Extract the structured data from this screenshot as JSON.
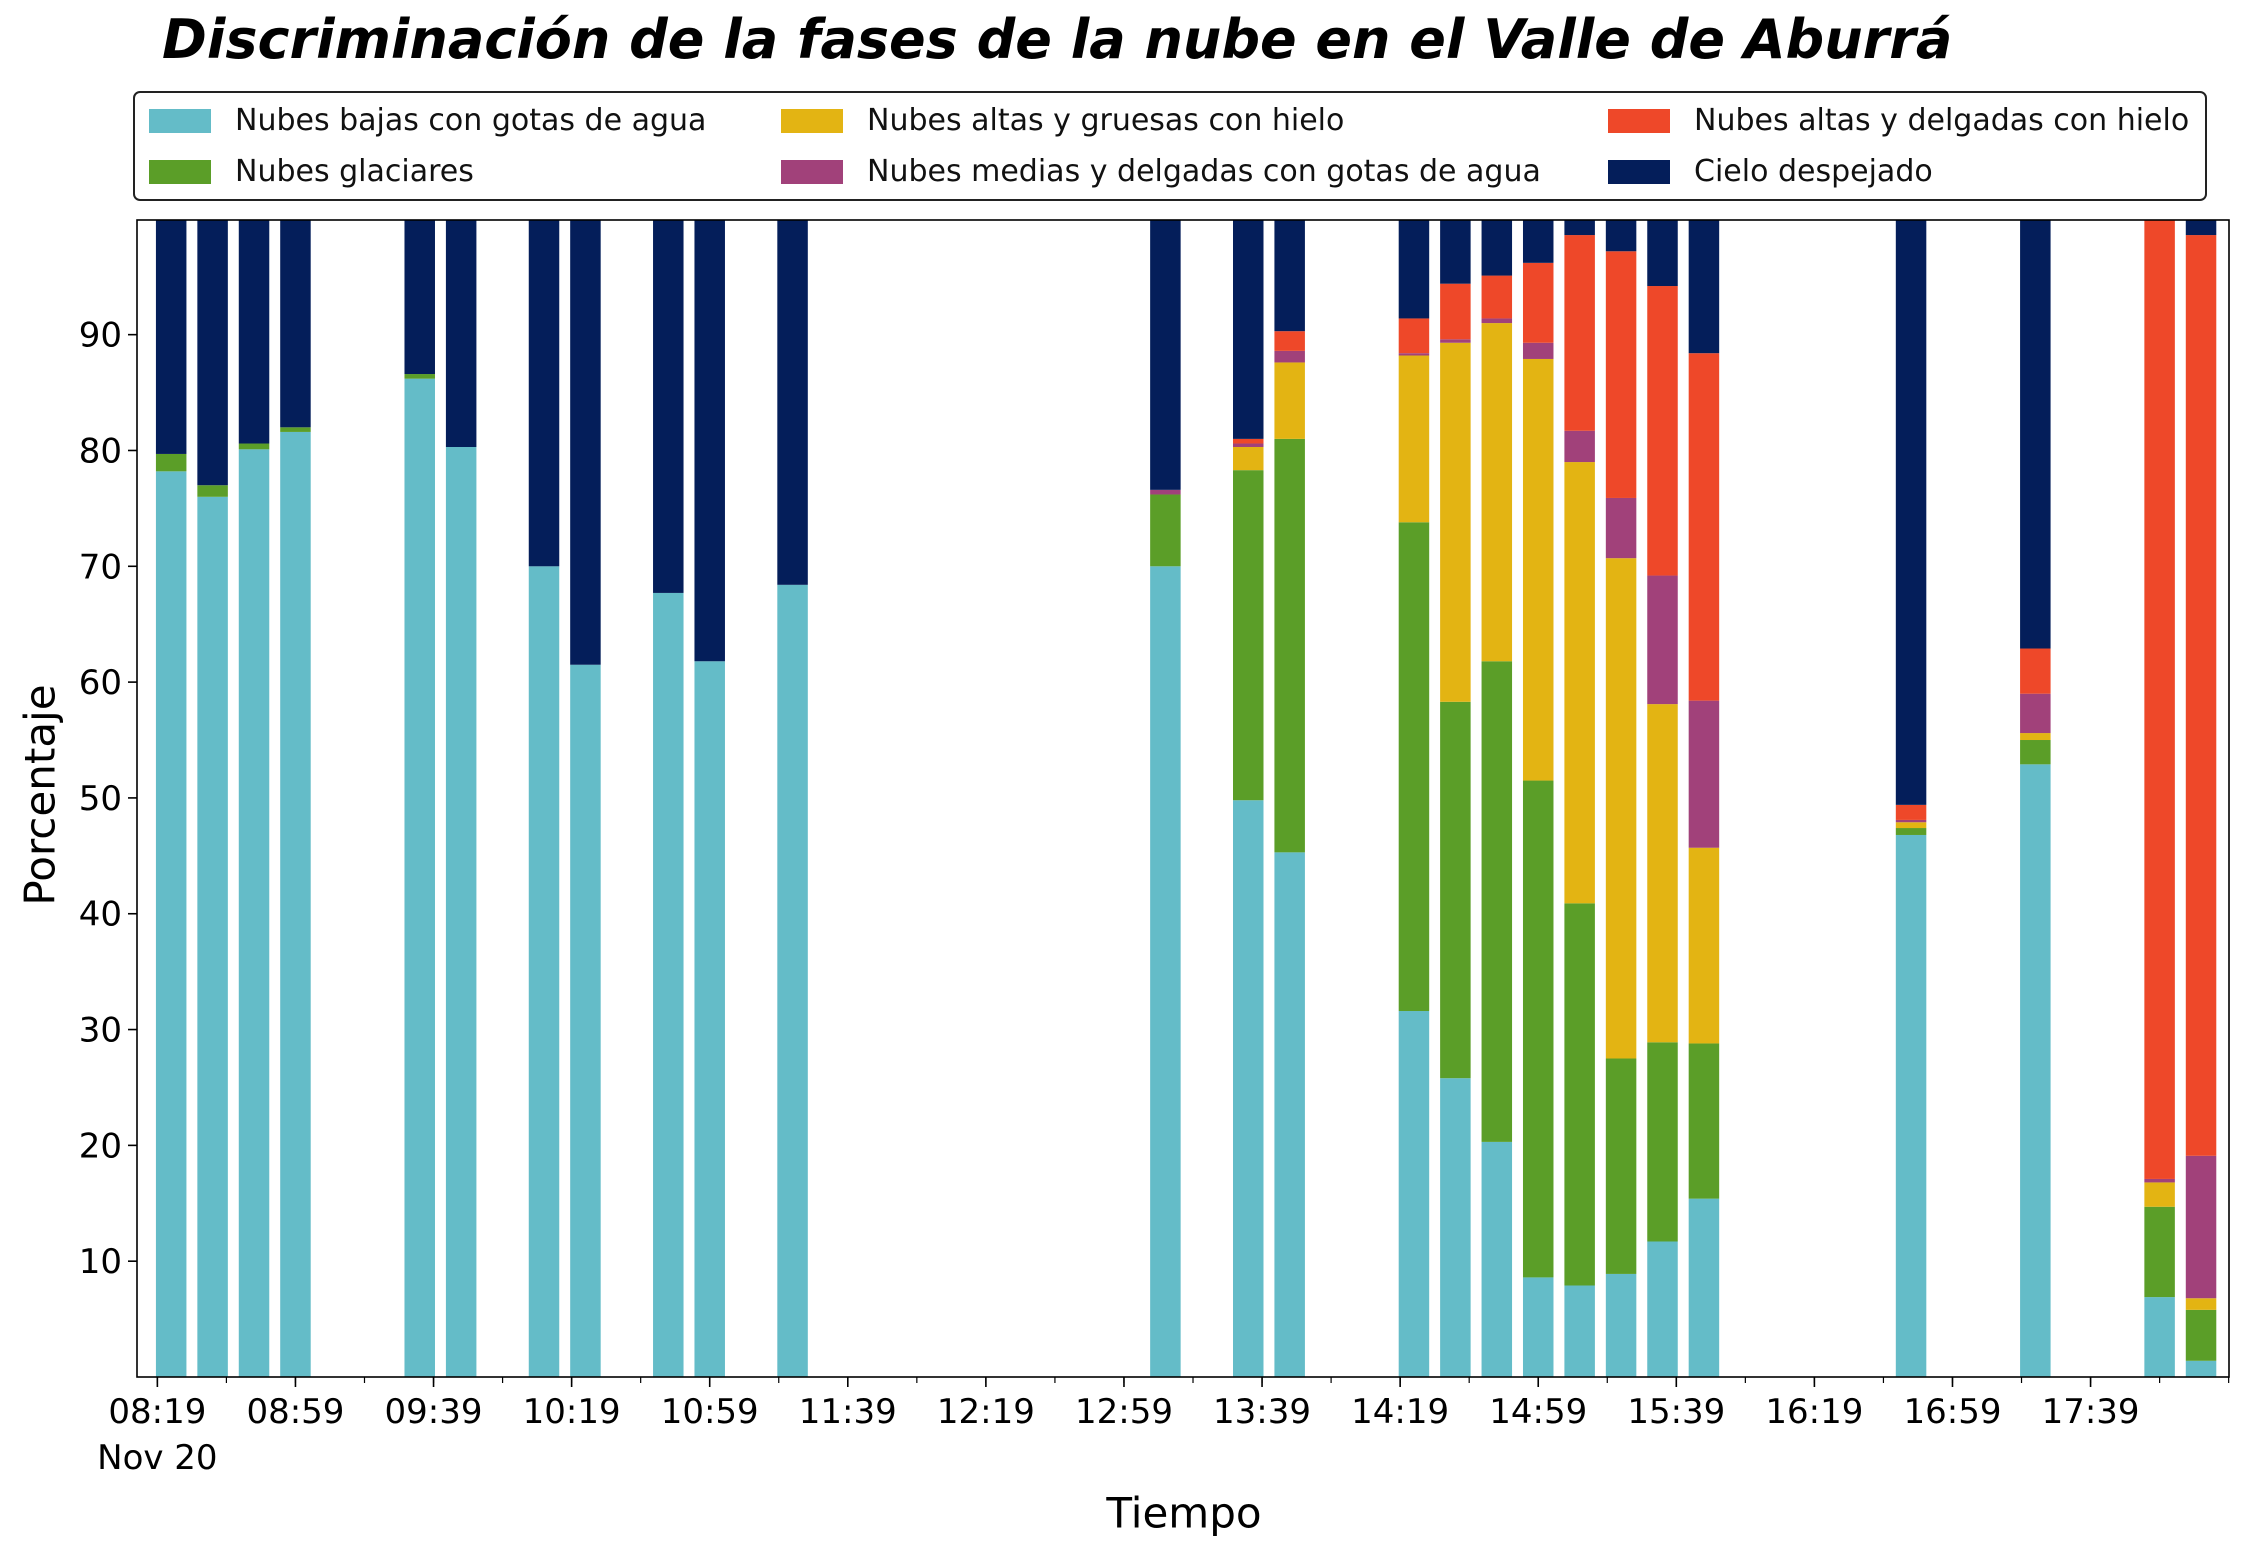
{
  "chart_data": {
    "type": "bar",
    "stacked": true,
    "title": "Discriminación de la fases de la nube en el Valle de Aburrá",
    "xlabel": "Tiempo",
    "ylabel": "Porcentaje",
    "ylim": [
      0,
      100
    ],
    "yticks": [
      10,
      20,
      30,
      40,
      50,
      60,
      70,
      80,
      90
    ],
    "xlim_minutes": [
      "08:13",
      "17:52"
    ],
    "xticks": [
      {
        "label": "08:19",
        "sub": "Nov 20",
        "time": "08:19"
      },
      {
        "label": "08:59",
        "sub": "",
        "time": "08:59"
      },
      {
        "label": "09:39",
        "sub": "",
        "time": "09:39"
      },
      {
        "label": "10:19",
        "sub": "",
        "time": "10:19"
      },
      {
        "label": "10:59",
        "sub": "",
        "time": "10:59"
      },
      {
        "label": "11:39",
        "sub": "",
        "time": "11:39"
      },
      {
        "label": "12:19",
        "sub": "",
        "time": "12:19"
      },
      {
        "label": "12:59",
        "sub": "",
        "time": "12:59"
      },
      {
        "label": "13:39",
        "sub": "",
        "time": "13:39"
      },
      {
        "label": "14:19",
        "sub": "",
        "time": "14:19"
      },
      {
        "label": "14:59",
        "sub": "",
        "time": "14:59"
      },
      {
        "label": "15:39",
        "sub": "",
        "time": "15:39"
      },
      {
        "label": "16:19",
        "sub": "",
        "time": "16:19"
      },
      {
        "label": "16:59",
        "sub": "",
        "time": "16:59"
      },
      {
        "label": "17:39",
        "sub": "",
        "time": "17:39"
      }
    ],
    "legend_position": "top",
    "series": [
      {
        "key": "bajas",
        "name": "Nubes bajas con gotas de agua",
        "color": "#64BCC8"
      },
      {
        "key": "glaciares",
        "name": "Nubes glaciares",
        "color": "#5B9E28"
      },
      {
        "key": "altas_gruesas",
        "name": "Nubes altas y gruesas con hielo",
        "color": "#E3B413"
      },
      {
        "key": "medias",
        "name": "Nubes medias y delgadas con gotas de agua",
        "color": "#A1417A"
      },
      {
        "key": "altas_delgadas",
        "name": "Nubes altas y delgadas con hielo",
        "color": "#EE4829"
      },
      {
        "key": "despejado",
        "name": "Cielo despejado",
        "color": "#041E5A"
      }
    ],
    "bars": [
      {
        "time": "08:23",
        "values": {
          "bajas": 78.2,
          "glaciares": 1.5,
          "altas_gruesas": 0,
          "medias": 0,
          "altas_delgadas": 0,
          "despejado": 20.3
        }
      },
      {
        "time": "08:35",
        "values": {
          "bajas": 76.0,
          "glaciares": 1.0,
          "altas_gruesas": 0,
          "medias": 0,
          "altas_delgadas": 0,
          "despejado": 23.0
        }
      },
      {
        "time": "08:47",
        "values": {
          "bajas": 80.1,
          "glaciares": 0.5,
          "altas_gruesas": 0,
          "medias": 0,
          "altas_delgadas": 0,
          "despejado": 19.4
        }
      },
      {
        "time": "08:59",
        "values": {
          "bajas": 81.6,
          "glaciares": 0.4,
          "altas_gruesas": 0,
          "medias": 0,
          "altas_delgadas": 0,
          "despejado": 18.0
        }
      },
      {
        "time": "09:35",
        "values": {
          "bajas": 86.2,
          "glaciares": 0.4,
          "altas_gruesas": 0,
          "medias": 0,
          "altas_delgadas": 0,
          "despejado": 13.4
        }
      },
      {
        "time": "09:47",
        "values": {
          "bajas": 80.3,
          "glaciares": 0,
          "altas_gruesas": 0,
          "medias": 0,
          "altas_delgadas": 0,
          "despejado": 19.7
        }
      },
      {
        "time": "10:11",
        "values": {
          "bajas": 70.0,
          "glaciares": 0,
          "altas_gruesas": 0,
          "medias": 0,
          "altas_delgadas": 0,
          "despejado": 30.0
        }
      },
      {
        "time": "10:23",
        "values": {
          "bajas": 61.5,
          "glaciares": 0,
          "altas_gruesas": 0,
          "medias": 0,
          "altas_delgadas": 0,
          "despejado": 38.5
        }
      },
      {
        "time": "10:47",
        "values": {
          "bajas": 67.7,
          "glaciares": 0,
          "altas_gruesas": 0,
          "medias": 0,
          "altas_delgadas": 0,
          "despejado": 32.3
        }
      },
      {
        "time": "10:59",
        "values": {
          "bajas": 61.8,
          "glaciares": 0,
          "altas_gruesas": 0,
          "medias": 0,
          "altas_delgadas": 0,
          "despejado": 38.2
        }
      },
      {
        "time": "11:23",
        "values": {
          "bajas": 68.4,
          "glaciares": 0,
          "altas_gruesas": 0,
          "medias": 0,
          "altas_delgadas": 0,
          "despejado": 31.6
        }
      },
      {
        "time": "13:11",
        "values": {
          "bajas": 70.0,
          "glaciares": 6.2,
          "altas_gruesas": 0,
          "medias": 0.4,
          "altas_delgadas": 0,
          "despejado": 23.4
        }
      },
      {
        "time": "13:35",
        "values": {
          "bajas": 49.8,
          "glaciares": 28.5,
          "altas_gruesas": 2.0,
          "medias": 0.3,
          "altas_delgadas": 0.4,
          "despejado": 19.0
        }
      },
      {
        "time": "13:47",
        "values": {
          "bajas": 45.3,
          "glaciares": 35.7,
          "altas_gruesas": 6.6,
          "medias": 1.0,
          "altas_delgadas": 1.7,
          "despejado": 9.7
        }
      },
      {
        "time": "14:23",
        "values": {
          "bajas": 31.6,
          "glaciares": 42.2,
          "altas_gruesas": 14.4,
          "medias": 0.2,
          "altas_delgadas": 3.0,
          "despejado": 8.6
        }
      },
      {
        "time": "14:35",
        "values": {
          "bajas": 25.8,
          "glaciares": 32.5,
          "altas_gruesas": 31.0,
          "medias": 0.3,
          "altas_delgadas": 4.8,
          "despejado": 5.6
        }
      },
      {
        "time": "14:47",
        "values": {
          "bajas": 20.3,
          "glaciares": 41.5,
          "altas_gruesas": 29.2,
          "medias": 0.4,
          "altas_delgadas": 3.7,
          "despejado": 4.9
        }
      },
      {
        "time": "14:59",
        "values": {
          "bajas": 8.6,
          "glaciares": 42.9,
          "altas_gruesas": 36.4,
          "medias": 1.4,
          "altas_delgadas": 6.9,
          "despejado": 3.8
        }
      },
      {
        "time": "15:11",
        "values": {
          "bajas": 7.9,
          "glaciares": 33.0,
          "altas_gruesas": 38.1,
          "medias": 2.7,
          "altas_delgadas": 16.9,
          "despejado": 1.4
        }
      },
      {
        "time": "15:23",
        "values": {
          "bajas": 8.9,
          "glaciares": 18.6,
          "altas_gruesas": 43.2,
          "medias": 5.2,
          "altas_delgadas": 21.3,
          "despejado": 2.8
        }
      },
      {
        "time": "15:35",
        "values": {
          "bajas": 11.7,
          "glaciares": 17.2,
          "altas_gruesas": 29.2,
          "medias": 11.1,
          "altas_delgadas": 25.0,
          "despejado": 5.8
        }
      },
      {
        "time": "15:47",
        "values": {
          "bajas": 15.4,
          "glaciares": 13.4,
          "altas_gruesas": 16.9,
          "medias": 12.7,
          "altas_delgadas": 30.0,
          "despejado": 11.6
        }
      },
      {
        "time": "16:47",
        "values": {
          "bajas": 46.8,
          "glaciares": 0.6,
          "altas_gruesas": 0.5,
          "medias": 0.2,
          "altas_delgadas": 1.3,
          "despejado": 50.6
        }
      },
      {
        "time": "17:23",
        "values": {
          "bajas": 52.9,
          "glaciares": 2.1,
          "altas_gruesas": 0.6,
          "medias": 3.4,
          "altas_delgadas": 3.9,
          "despejado": 37.1
        }
      },
      {
        "time": "17:59",
        "values": {
          "bajas": 6.9,
          "glaciares": 7.8,
          "altas_gruesas": 2.1,
          "medias": 0.3,
          "altas_delgadas": 82.9,
          "despejado": 0
        }
      },
      {
        "time": "18:11",
        "values": {
          "bajas": 1.4,
          "glaciares": 4.4,
          "altas_gruesas": 1.0,
          "medias": 12.3,
          "altas_delgadas": 79.5,
          "despejado": 1.4
        }
      }
    ]
  }
}
